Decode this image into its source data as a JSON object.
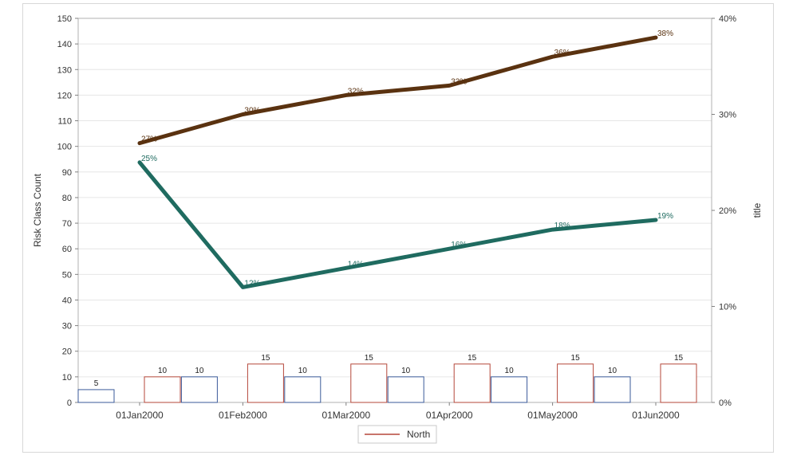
{
  "chart_data": {
    "type": "bar+line",
    "categories": [
      "01Jan2000",
      "01Feb2000",
      "01Mar2000",
      "01Apr2000",
      "01May2000",
      "01Jun2000"
    ],
    "bar_series": [
      {
        "color": "#3a5a9a",
        "values": [
          5,
          10,
          10,
          10,
          10,
          10
        ],
        "labels": [
          "5",
          "10",
          "10",
          "10",
          "10",
          "10"
        ]
      },
      {
        "color": "#b5473a",
        "values": [
          10,
          15,
          15,
          15,
          15,
          15
        ],
        "labels": [
          "10",
          "15",
          "15",
          "15",
          "15",
          "15"
        ]
      }
    ],
    "line_series": [
      {
        "color": "#5a3210",
        "label_color": "#5a3210",
        "values": [
          27,
          30,
          32,
          33,
          36,
          38
        ],
        "labels": [
          "27%",
          "30%",
          "32%",
          "33%",
          "36%",
          "38%"
        ]
      },
      {
        "color": "#1f6b60",
        "label_color": "#1f6b60",
        "values": [
          25,
          12,
          14,
          16,
          18,
          19
        ],
        "labels": [
          "25%",
          "12%",
          "14%",
          "16%",
          "18%",
          "19%"
        ]
      }
    ],
    "y_left": {
      "label": "Risk Class Count",
      "min": 0,
      "max": 150,
      "ticks": [
        0,
        10,
        20,
        30,
        40,
        50,
        60,
        70,
        80,
        90,
        100,
        110,
        120,
        130,
        140,
        150
      ]
    },
    "y_right": {
      "label": "title",
      "min": 0,
      "max": 40,
      "ticks": [
        "0%",
        "10%",
        "20%",
        "30%",
        "40%"
      ],
      "tick_values": [
        0,
        10,
        20,
        30,
        40
      ]
    },
    "grid": true,
    "legend": {
      "position": "bottom-center",
      "entries": [
        {
          "label": "North",
          "color": "#b5473a"
        }
      ]
    }
  }
}
